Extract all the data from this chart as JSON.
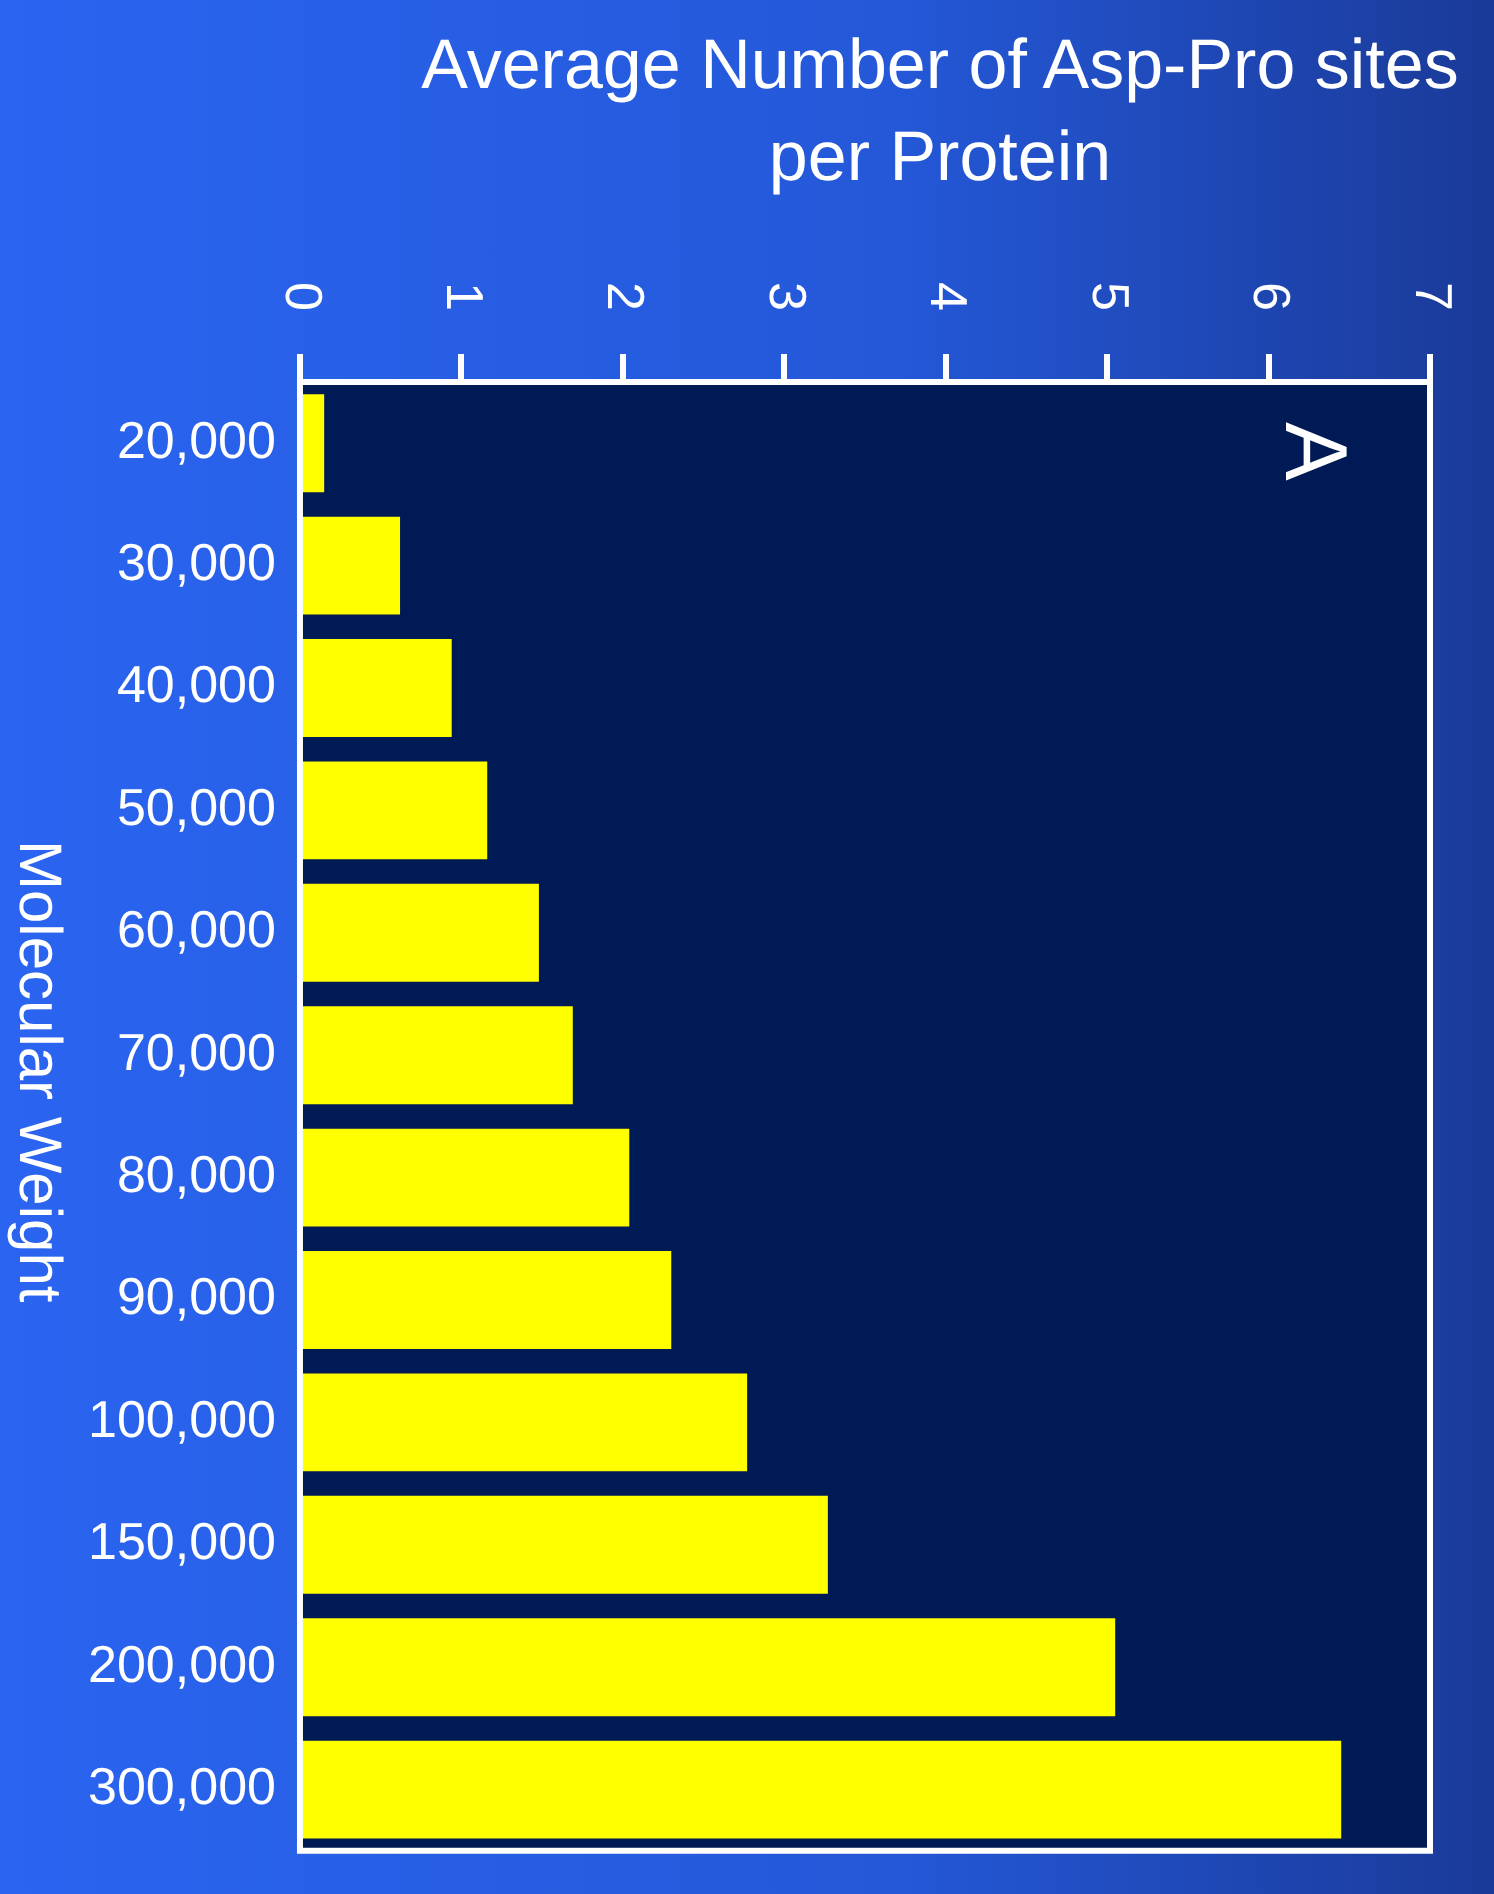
{
  "chart_data": {
    "type": "bar",
    "orientation": "horizontal",
    "title": "Average Number of Asp-Pro sites per Protein",
    "ylabel": "Molecular Weight",
    "categories": [
      "20,000",
      "30,000",
      "40,000",
      "50,000",
      "60,000",
      "70,000",
      "80,000",
      "90,000",
      "100,000",
      "150,000",
      "200,000",
      "300,000"
    ],
    "values": [
      0.15,
      0.62,
      0.94,
      1.16,
      1.48,
      1.69,
      2.04,
      2.3,
      2.77,
      3.27,
      5.05,
      6.45
    ],
    "color": "#ffff00",
    "xlim": [
      0,
      7
    ],
    "xticks": [
      0,
      1,
      2,
      3,
      4,
      5,
      6,
      7
    ],
    "grid": false,
    "legend": false,
    "annotations": [
      "A"
    ]
  }
}
